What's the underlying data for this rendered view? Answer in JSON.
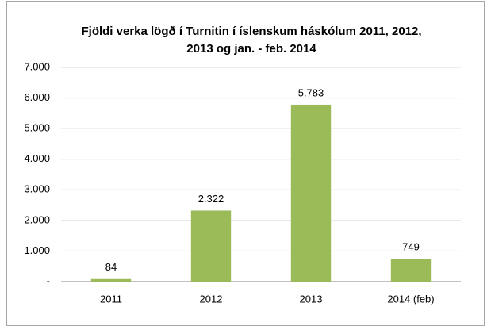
{
  "chart_data": {
    "type": "bar",
    "title": [
      "Fjöldi verka lögð í Turnitin í íslenskum háskólum 2011, 2012,",
      "2013 og jan. - feb. 2014"
    ],
    "categories": [
      "2011",
      "2012",
      "2013",
      "2014 (feb)"
    ],
    "values": [
      84,
      2322,
      5783,
      749
    ],
    "value_labels": [
      "84",
      "2.322",
      "5.783",
      "749"
    ],
    "color": "#9bbb59",
    "ylim": [
      0,
      7000
    ],
    "yticks": [
      {
        "value": 0,
        "label": "-"
      },
      {
        "value": 1000,
        "label": "1.000"
      },
      {
        "value": 2000,
        "label": "2.000"
      },
      {
        "value": 3000,
        "label": "3.000"
      },
      {
        "value": 4000,
        "label": "4.000"
      },
      {
        "value": 5000,
        "label": "5.000"
      },
      {
        "value": 6000,
        "label": "6.000"
      },
      {
        "value": 7000,
        "label": "7.000"
      }
    ],
    "grid": true
  }
}
